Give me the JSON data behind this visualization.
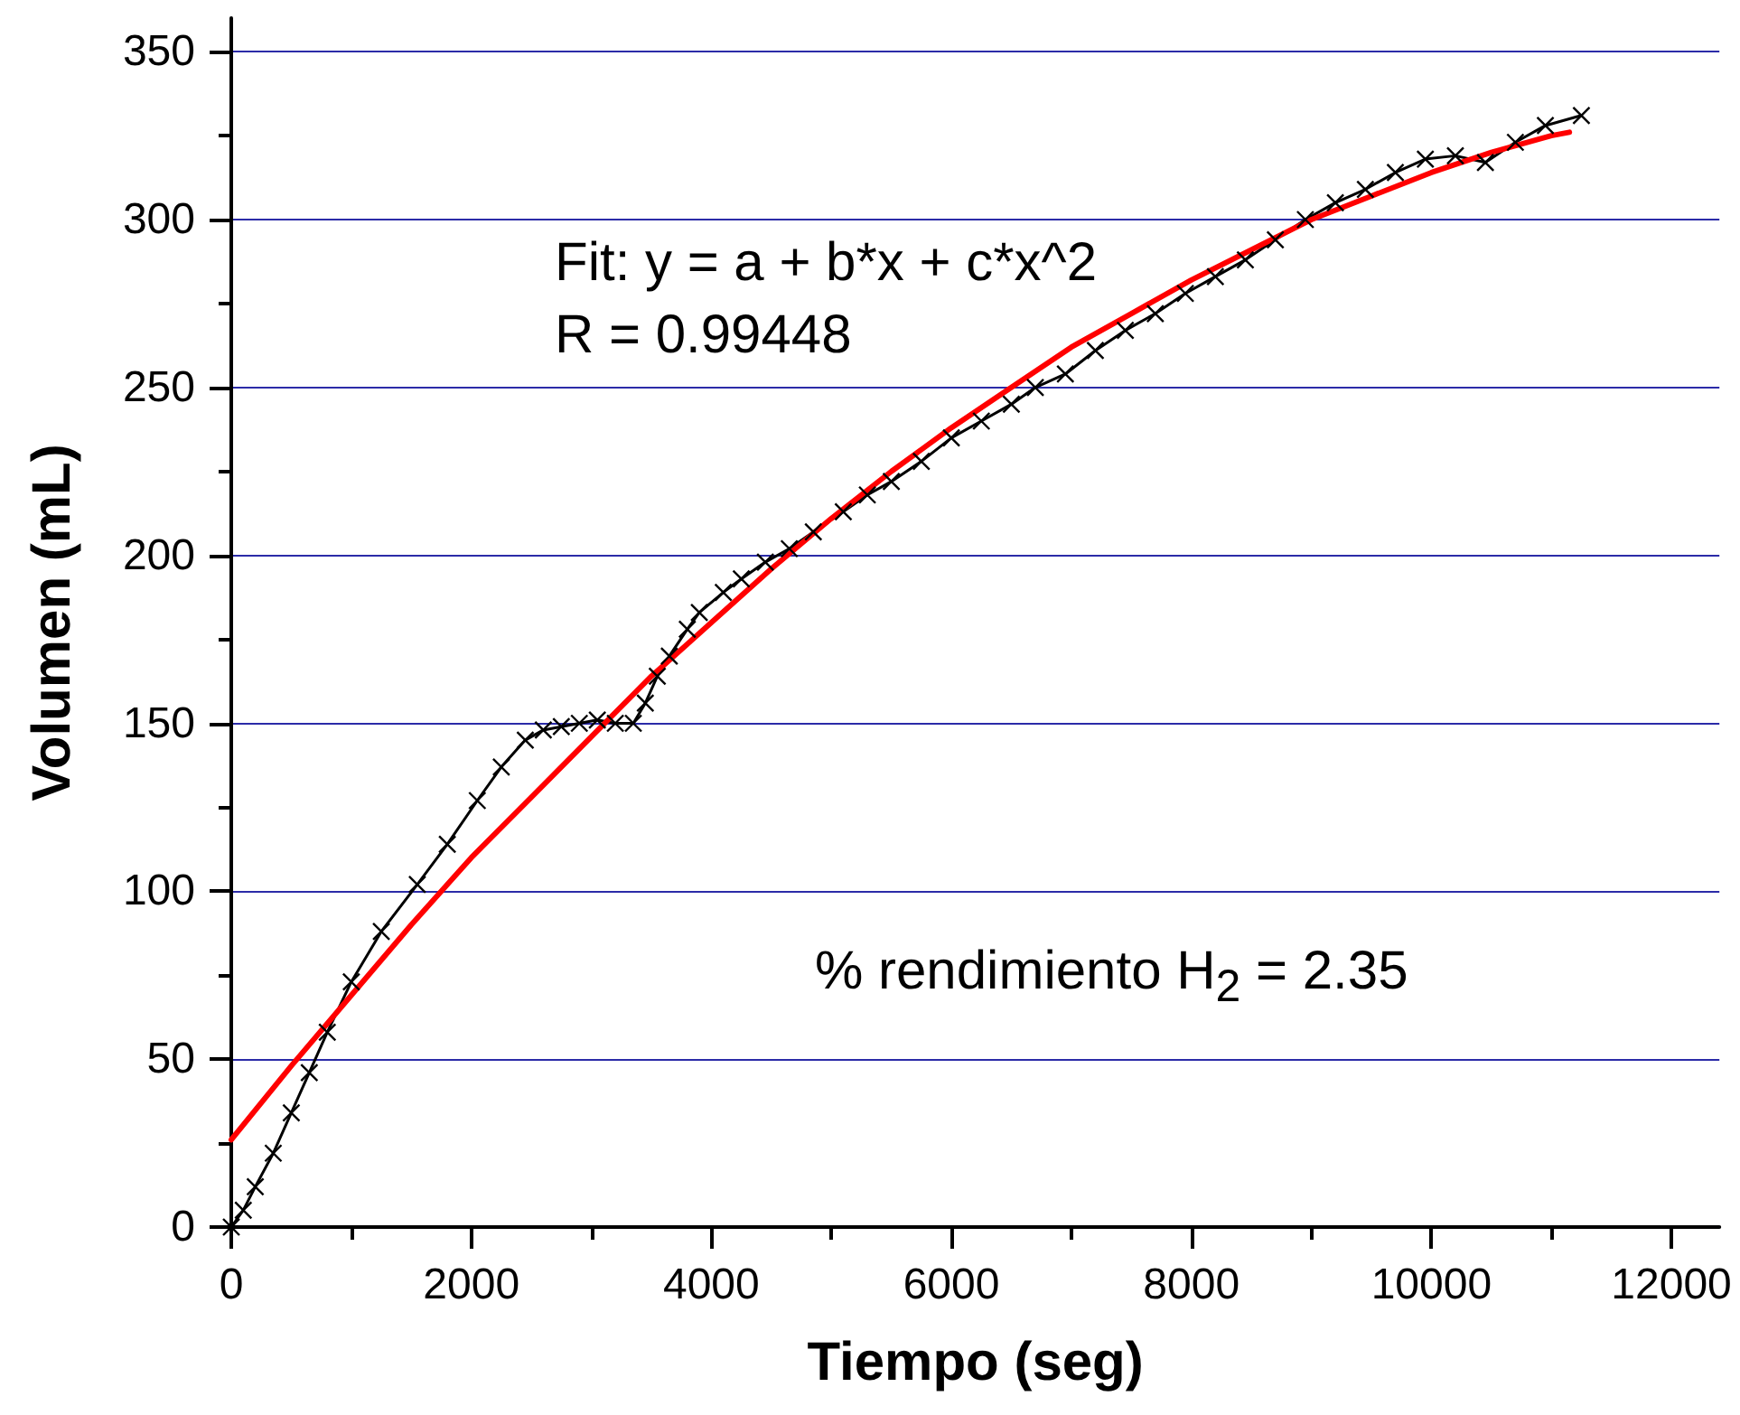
{
  "chart_data": {
    "type": "line",
    "xlabel": "Tiempo (seg)",
    "ylabel": "Volumen (mL)",
    "xlim": [
      0,
      12400
    ],
    "xticks": [
      0,
      {
        "value": 1000,
        "label": null
      },
      2000,
      {
        "value": 3000,
        "label": null
      },
      4000,
      {
        "value": 5000,
        "label": null
      },
      6000,
      {
        "value": 7000,
        "label": null
      },
      8000,
      {
        "value": 9000,
        "label": null
      },
      10000,
      {
        "value": 11000,
        "label": null
      },
      12000
    ],
    "ylim": [
      0,
      360
    ],
    "yticks": [
      0,
      {
        "value": 25,
        "label": null
      },
      50,
      {
        "value": 75,
        "label": null
      },
      100,
      {
        "value": 125,
        "label": null
      },
      150,
      {
        "value": 175,
        "label": null
      },
      200,
      {
        "value": 225,
        "label": null
      },
      250,
      {
        "value": 275,
        "label": null
      },
      300,
      {
        "value": 325,
        "label": null
      },
      350
    ],
    "grid": "y",
    "annotations": [
      "Fit: y = a + b*x + c*x^2",
      "R = 0.99448",
      "% rendimiento H$_{2}$ = 2.35"
    ],
    "series": [
      {
        "color": "#000000",
        "marker": "cross",
        "x": [
          0,
          100,
          200,
          350,
          500,
          650,
          800,
          1000,
          1250,
          1550,
          1800,
          2050,
          2250,
          2450,
          2600,
          2750,
          2900,
          3050,
          3200,
          3350,
          3450,
          3550,
          3650,
          3800,
          3900,
          4100,
          4250,
          4450,
          4650,
          4850,
          5100,
          5300,
          5500,
          5750,
          6000,
          6250,
          6500,
          6700,
          6950,
          7200,
          7450,
          7700,
          7950,
          8200,
          8450,
          8700,
          8950,
          9200,
          9450,
          9700,
          9950,
          10200,
          10450,
          10700,
          10950,
          11250
        ],
        "values": [
          0,
          5,
          12,
          22,
          34,
          46,
          58,
          73,
          88,
          102,
          114,
          127,
          137,
          145,
          148,
          149,
          150,
          151,
          150,
          150,
          156,
          164,
          170,
          178,
          183,
          189,
          193,
          198,
          202,
          207,
          213,
          218,
          222,
          228,
          235,
          240,
          245,
          250,
          254,
          261,
          267,
          272,
          278,
          283,
          288,
          294,
          300,
          305,
          309,
          314,
          318,
          319,
          317,
          323,
          328,
          331
        ]
      },
      {
        "color": "#ff0000",
        "x": [
          0,
          500,
          1000,
          1500,
          2000,
          2500,
          3000,
          3500,
          4000,
          4500,
          5000,
          5500,
          6000,
          6500,
          7000,
          7500,
          8000,
          8500,
          9000,
          9500,
          10000,
          10500,
          11000,
          11150
        ],
        "values": [
          26,
          48,
          69,
          90,
          110,
          128,
          146,
          164,
          180,
          196,
          211,
          225,
          238,
          250,
          262,
          272,
          282,
          291,
          300,
          307,
          314,
          320,
          325,
          326
        ]
      }
    ]
  }
}
